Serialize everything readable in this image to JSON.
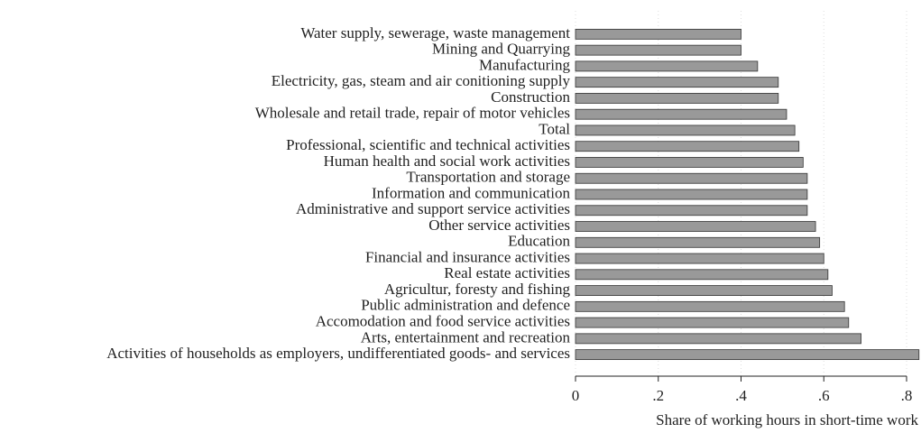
{
  "chart_data": {
    "type": "barh",
    "x_label": "Share of working hours in short-time work",
    "categories": [
      "Water supply, sewerage, waste management",
      "Mining and Quarrying",
      "Manufacturing",
      "Electricity, gas, steam and air conitioning supply",
      "Construction",
      "Wholesale and retail trade, repair of motor vehicles",
      "Total",
      "Professional, scientific and technical activities",
      "Human health and social work activities",
      "Transportation and storage",
      "Information and communication",
      "Administrative and support service activities",
      "Other service activities",
      "Education",
      "Financial and insurance activities",
      "Real estate activities",
      "Agricultur, foresty and fishing",
      "Public administration and defence",
      "Accomodation and food service activities",
      "Arts, entertainment and recreation",
      "Activities of households as employers, undifferentiated goods- and services"
    ],
    "values": [
      0.4,
      0.4,
      0.44,
      0.49,
      0.49,
      0.51,
      0.53,
      0.54,
      0.55,
      0.56,
      0.56,
      0.56,
      0.58,
      0.59,
      0.6,
      0.61,
      0.62,
      0.65,
      0.66,
      0.69,
      0.83
    ],
    "color": "#999999",
    "xlim": [
      0,
      0.8
    ],
    "xticks": [
      0,
      {
        "value": 0.2,
        "label": ".2"
      },
      {
        "value": 0.4,
        "label": ".4"
      },
      {
        "value": 0.6,
        "label": ".6"
      },
      {
        "value": 0.8,
        "label": ".8"
      }
    ],
    "grid": true
  }
}
